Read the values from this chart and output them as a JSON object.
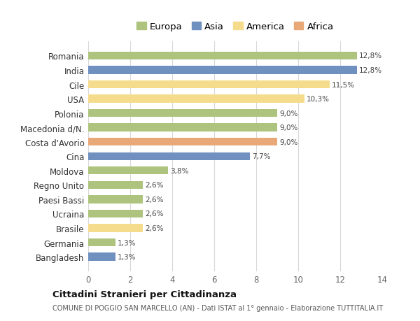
{
  "categories": [
    "Bangladesh",
    "Germania",
    "Brasile",
    "Ucraina",
    "Paesi Bassi",
    "Regno Unito",
    "Moldova",
    "Cina",
    "Costa d'Avorio",
    "Macedonia d/N.",
    "Polonia",
    "USA",
    "Cile",
    "India",
    "Romania"
  ],
  "values": [
    1.3,
    1.3,
    2.6,
    2.6,
    2.6,
    2.6,
    3.8,
    7.7,
    9.0,
    9.0,
    9.0,
    10.3,
    11.5,
    12.8,
    12.8
  ],
  "continents": [
    "Asia",
    "Europa",
    "America",
    "Europa",
    "Europa",
    "Europa",
    "Europa",
    "Asia",
    "Africa",
    "Europa",
    "Europa",
    "America",
    "America",
    "Asia",
    "Europa"
  ],
  "colors": {
    "Europa": "#aec47e",
    "Asia": "#7090bf",
    "America": "#f5dc8c",
    "Africa": "#e8a878"
  },
  "labels": [
    "1,3%",
    "1,3%",
    "2,6%",
    "2,6%",
    "2,6%",
    "2,6%",
    "3,8%",
    "7,7%",
    "9,0%",
    "9,0%",
    "9,0%",
    "10,3%",
    "11,5%",
    "12,8%",
    "12,8%"
  ],
  "xlim": [
    0,
    14
  ],
  "xticks": [
    0,
    2,
    4,
    6,
    8,
    10,
    12,
    14
  ],
  "title": "Cittadini Stranieri per Cittadinanza",
  "subtitle": "COMUNE DI POGGIO SAN MARCELLO (AN) - Dati ISTAT al 1° gennaio - Elaborazione TUTTITALIA.IT",
  "legend_order": [
    "Europa",
    "Asia",
    "America",
    "Africa"
  ],
  "background_color": "#ffffff",
  "grid_color": "#d8d8d8"
}
